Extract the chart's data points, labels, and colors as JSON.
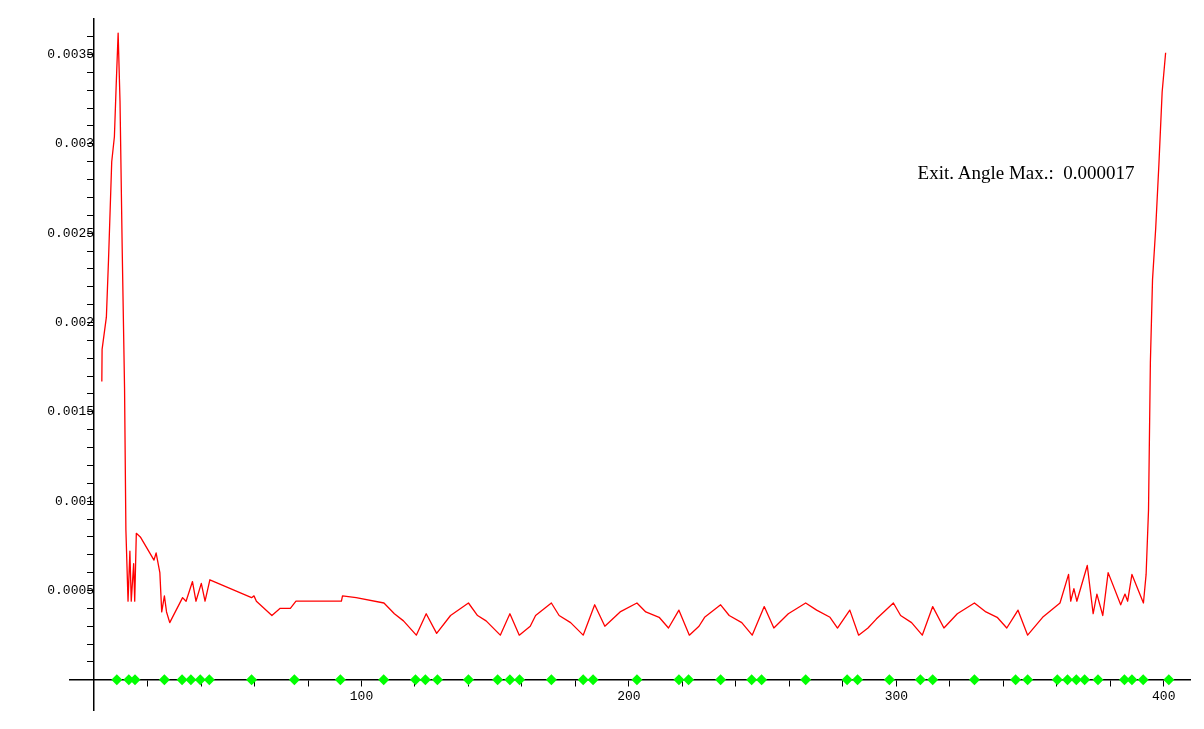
{
  "chart_data": {
    "type": "line",
    "annotations": [
      "Exit. Angle Max.:  0.000017"
    ],
    "xlim": [
      -9,
      410
    ],
    "ylim": [
      -0.00017,
      0.0037
    ],
    "xticks": [
      {
        "value": 20,
        "label": null
      },
      {
        "value": 40,
        "label": null
      },
      {
        "value": 60,
        "label": null
      },
      {
        "value": 80,
        "label": null
      },
      100,
      {
        "value": 120,
        "label": null
      },
      {
        "value": 140,
        "label": null
      },
      {
        "value": 160,
        "label": null
      },
      {
        "value": 180,
        "label": null
      },
      200,
      {
        "value": 220,
        "label": null
      },
      {
        "value": 240,
        "label": null
      },
      {
        "value": 260,
        "label": null
      },
      {
        "value": 280,
        "label": null
      },
      300,
      {
        "value": 320,
        "label": null
      },
      {
        "value": 340,
        "label": null
      },
      {
        "value": 360,
        "label": null
      },
      {
        "value": 380,
        "label": null
      },
      400
    ],
    "yticks": [
      {
        "value": 0.0001,
        "label": null
      },
      {
        "value": 0.0002,
        "label": null
      },
      {
        "value": 0.0003,
        "label": null
      },
      {
        "value": 0.0004,
        "label": null
      },
      0.0005,
      {
        "value": 0.0006,
        "label": null
      },
      {
        "value": 0.0007,
        "label": null
      },
      {
        "value": 0.0008,
        "label": null
      },
      {
        "value": 0.0009,
        "label": null
      },
      0.001,
      {
        "value": 0.0011,
        "label": null
      },
      {
        "value": 0.0012,
        "label": null
      },
      {
        "value": 0.0013,
        "label": null
      },
      {
        "value": 0.0014,
        "label": null
      },
      0.0015,
      {
        "value": 0.0016,
        "label": null
      },
      {
        "value": 0.0017,
        "label": null
      },
      {
        "value": 0.0018,
        "label": null
      },
      {
        "value": 0.0019,
        "label": null
      },
      0.002,
      {
        "value": 0.0021,
        "label": null
      },
      {
        "value": 0.0022,
        "label": null
      },
      {
        "value": 0.0023,
        "label": null
      },
      {
        "value": 0.0024,
        "label": null
      },
      0.0025,
      {
        "value": 0.0026,
        "label": null
      },
      {
        "value": 0.0027,
        "label": null
      },
      {
        "value": 0.0028,
        "label": null
      },
      {
        "value": 0.0029,
        "label": null
      },
      0.003,
      {
        "value": 0.0031,
        "label": null
      },
      {
        "value": 0.0032,
        "label": null
      },
      {
        "value": 0.0033,
        "label": null
      },
      {
        "value": 0.0034,
        "label": null
      },
      0.0035,
      {
        "value": 0.0036,
        "label": null
      }
    ],
    "grid": false,
    "legend": false,
    "series": [
      {
        "color": "#ff0000",
        "marker": "none",
        "x": [
          2.9,
          3,
          4.6,
          5.4,
          6.6,
          7.6,
          8.3,
          9,
          9.7,
          10.5,
          11.4,
          11.9,
          12.7,
          13.4,
          13.9,
          14.8,
          15.2,
          15.8,
          17.3,
          22.4,
          23.2,
          24.6,
          25.3,
          26.3,
          27.1,
          28.3,
          33.1,
          34.4,
          36.8,
          38.1,
          40.1,
          41.5,
          43.3,
          58.9,
          59.8,
          60.7,
          66.5,
          69.6,
          73.4,
          75.5,
          92.5,
          92.9,
          98,
          108.4,
          112.3,
          115.7,
          120.5,
          124.2,
          128.1,
          133.3,
          140,
          143.4,
          146.6,
          151.9,
          155.5,
          159,
          163.1,
          165.1,
          171,
          173.9,
          178.2,
          182.9,
          187.2,
          191,
          196.7,
          203,
          206.3,
          211.3,
          214.8,
          218.7,
          222.6,
          226.2,
          228.3,
          234.3,
          237.5,
          242.2,
          246.1,
          250.6,
          254.2,
          259.6,
          266.1,
          270.2,
          275.2,
          278,
          282.6,
          285.9,
          289.4,
          292.5,
          298.9,
          301.6,
          305.7,
          309.7,
          313.6,
          317.8,
          322.8,
          329.2,
          333.5,
          337.7,
          341.3,
          345.5,
          349.1,
          354.7,
          361.2,
          364.4,
          365.2,
          366.4,
          367.5,
          371.4,
          373.6,
          375,
          377.2,
          379.2,
          383.9,
          385.5,
          386.5,
          388.1,
          392.4,
          393.4,
          394.3,
          395,
          395.8,
          397,
          398.2,
          399.4,
          400.7
        ],
        "values": [
          0.00167,
          0.00185,
          0.00203,
          0.00235,
          0.0029,
          0.00304,
          0.00334,
          0.00362,
          0.00324,
          0.00243,
          0.00163,
          0.00084,
          0.00044,
          0.00072,
          0.00044,
          0.00065,
          0.00044,
          0.00082,
          0.0008,
          0.00067,
          0.00071,
          0.0006,
          0.00038,
          0.00047,
          0.00038,
          0.00032,
          0.00046,
          0.00044,
          0.00055,
          0.00044,
          0.00054,
          0.00044,
          0.00056,
          0.00046,
          0.00047,
          0.00044,
          0.00036,
          0.0004,
          0.0004,
          0.00044,
          0.00044,
          0.00047,
          0.00046,
          0.00043,
          0.00037,
          0.00033,
          0.00025,
          0.00037,
          0.00026,
          0.00036,
          0.00043,
          0.00036,
          0.00033,
          0.00025,
          0.00037,
          0.00025,
          0.0003,
          0.00036,
          0.00043,
          0.00036,
          0.00032,
          0.00025,
          0.00042,
          0.0003,
          0.00038,
          0.00043,
          0.00038,
          0.00035,
          0.00029,
          0.00039,
          0.00025,
          0.0003,
          0.00035,
          0.00042,
          0.00036,
          0.00032,
          0.00025,
          0.00041,
          0.00029,
          0.00037,
          0.00043,
          0.00039,
          0.00035,
          0.00029,
          0.00039,
          0.00025,
          0.00029,
          0.00034,
          0.00043,
          0.00036,
          0.00032,
          0.00025,
          0.00041,
          0.00029,
          0.00037,
          0.00043,
          0.00038,
          0.00035,
          0.00029,
          0.00039,
          0.00025,
          0.00035,
          0.00043,
          0.00059,
          0.00044,
          0.00051,
          0.00044,
          0.00064,
          0.00037,
          0.00048,
          0.00036,
          0.0006,
          0.00042,
          0.00048,
          0.00044,
          0.00059,
          0.00043,
          0.00059,
          0.00095,
          0.00178,
          0.00224,
          0.00253,
          0.00289,
          0.00329,
          0.00351
        ]
      },
      {
        "type": "scatter",
        "color": "#00ff00",
        "marker": "diamond",
        "x": [
          8.5,
          13,
          15.3,
          26.3,
          32.9,
          36.2,
          39.7,
          43.1,
          58.9,
          74.9,
          92.1,
          108.3,
          120.2,
          123.9,
          128.4,
          140,
          150.9,
          155.5,
          159.1,
          171,
          182.9,
          186.6,
          203,
          218.7,
          222.3,
          234.3,
          245.9,
          249.6,
          266.1,
          281.6,
          285.5,
          297.4,
          309,
          313.6,
          329.2,
          344.6,
          349.1,
          360.2,
          364,
          367.3,
          370.4,
          375.4,
          385.3,
          388.1,
          392.3,
          401.9
        ],
        "values": [
          0,
          0,
          0,
          0,
          0,
          0,
          0,
          0,
          0,
          0,
          0,
          0,
          0,
          0,
          0,
          0,
          0,
          0,
          0,
          0,
          0,
          0,
          0,
          0,
          0,
          0,
          0,
          0,
          0,
          0,
          0,
          0,
          0,
          0,
          0,
          0,
          0,
          0,
          0,
          0,
          0,
          0,
          0,
          0,
          0,
          0
        ]
      }
    ]
  }
}
